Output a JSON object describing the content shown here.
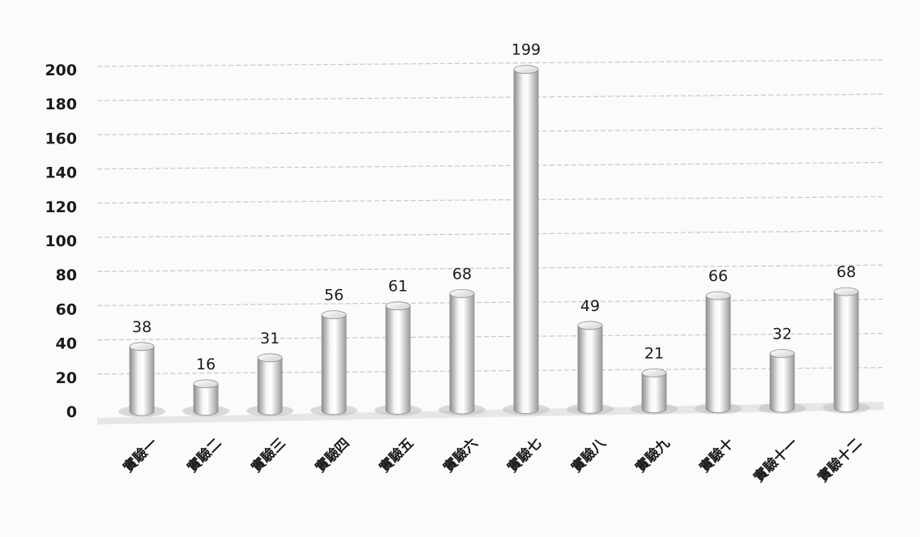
{
  "chart_data": {
    "type": "bar",
    "categories": [
      "實驗一",
      "實驗二",
      "實驗三",
      "實驗四",
      "實驗五",
      "實驗六",
      "實驗七",
      "實驗八",
      "實驗九",
      "實驗十",
      "實驗十一",
      "實驗十二"
    ],
    "values": [
      38,
      16,
      31,
      56,
      61,
      68,
      199,
      49,
      21,
      66,
      32,
      68
    ],
    "ylim": [
      0,
      200
    ],
    "yticks": [
      0,
      20,
      40,
      60,
      80,
      100,
      120,
      140,
      160,
      180,
      200
    ],
    "grid": true,
    "legend": "none",
    "style": "3d-cylinder",
    "colors": {
      "bar_light": "#f7f7f7",
      "bar_dark": "#9a9a9a",
      "grid": "#c8c8c8",
      "floor": "#d9d9d9"
    }
  }
}
